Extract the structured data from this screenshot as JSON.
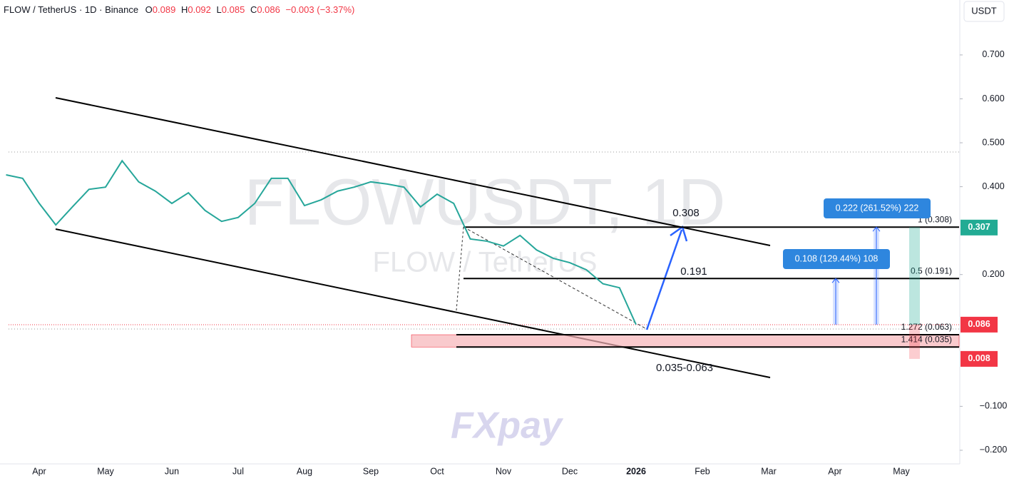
{
  "header": {
    "symbol": "FLOW / TetherUS · 1D · Binance",
    "o_label": "O",
    "open": "0.089",
    "h_label": "H",
    "high": "0.092",
    "l_label": "L",
    "low": "0.085",
    "c_label": "C",
    "close": "0.086",
    "change": "−0.003 (−3.37%)",
    "currency": "USDT"
  },
  "chart_data": {
    "type": "line",
    "watermark": "FLOWUSDT, 1D",
    "watermark_sub": "FLOW / TetherUS",
    "logo": "FXpay",
    "categories": [
      null,
      null,
      "Apr",
      null,
      null,
      null,
      "May",
      null,
      null,
      null,
      "Jun",
      null,
      null,
      null,
      "Jul",
      null,
      null,
      null,
      "Aug",
      null,
      null,
      null,
      "Sep",
      null,
      null,
      null,
      "Oct",
      null,
      null,
      null,
      "Nov",
      null,
      null,
      null,
      "Dec",
      null,
      null,
      null,
      "2026",
      null,
      null,
      null,
      "Feb",
      null,
      null,
      null,
      "Mar",
      null,
      null,
      null,
      "Apr",
      null,
      null,
      null,
      "May",
      null,
      null,
      null
    ],
    "series": [
      {
        "name": "FLOW / TetherUS",
        "color": "#26a69a",
        "values": [
          0.427,
          0.419,
          0.362,
          0.313,
          0.354,
          0.394,
          0.399,
          0.459,
          0.411,
          0.39,
          0.362,
          0.386,
          0.346,
          0.321,
          0.33,
          0.362,
          0.419,
          0.419,
          0.357,
          0.37,
          0.39,
          0.399,
          0.411,
          0.406,
          0.399,
          0.354,
          0.383,
          0.362,
          0.281,
          0.276,
          0.265,
          0.289,
          0.256,
          0.237,
          0.227,
          0.211,
          0.179,
          0.17,
          0.086,
          null,
          null,
          null,
          null,
          null,
          null,
          null,
          null,
          null,
          null,
          null,
          null,
          null,
          null,
          null,
          null,
          null,
          null,
          null
        ]
      }
    ],
    "ylim": [
      -0.231,
      0.825
    ],
    "yticks": [
      {
        "value": 0.7,
        "label": "0.700"
      },
      {
        "value": 0.6,
        "label": "0.600"
      },
      {
        "value": 0.5,
        "label": "0.500"
      },
      {
        "value": 0.4,
        "label": "0.400"
      },
      {
        "value": 0.2,
        "label": "0.200"
      },
      {
        "value": -0.1,
        "label": "−0.100"
      },
      {
        "value": -0.2,
        "label": "−0.200"
      }
    ],
    "levels": [
      0.308,
      0.191,
      0.063,
      0.035
    ],
    "fib_labels": [
      "1 (0.308)",
      "0.5 (0.191)",
      "1.272 (0.063)",
      "1.414 (0.035)"
    ],
    "zone_label": "0.035-0.063",
    "measures": [
      "0.222 (261.52%) 222",
      "0.108 (129.44%) 108"
    ],
    "price_tags": [
      {
        "value": 0.307,
        "color": "#22ab94"
      },
      {
        "value": 0.086,
        "color": "#f23645"
      },
      {
        "value": 0.008,
        "color": "#f23645"
      }
    ]
  }
}
